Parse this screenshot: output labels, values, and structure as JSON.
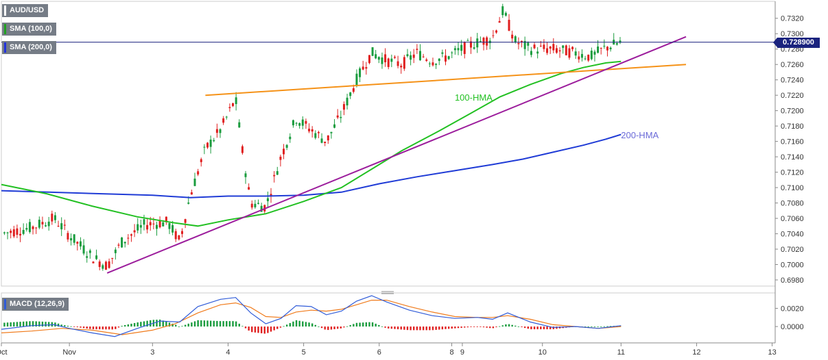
{
  "symbol": "AUD/USD",
  "legend": [
    {
      "label": "SMA (100,0)",
      "color": "#1fa01f"
    },
    {
      "label": "SMA (200,0)",
      "color": "#2233dd"
    }
  ],
  "macd_label": "MACD (12,26,9)",
  "current_price_label": "0.728900",
  "colors": {
    "up": "#1a9c3e",
    "down": "#e01f1f",
    "hma100": "#22c022",
    "hma200": "#1f3bd6",
    "support": "#9c1d9c",
    "resistance": "#f59218",
    "price_line": "#1a237e",
    "macd": "#2f5bd8",
    "signal": "#f07a1a"
  },
  "chart_data": {
    "type": "candlestick",
    "xlabel": "",
    "ylabel": "",
    "x_ticks": [
      "Oct",
      "Nov",
      "3",
      "4",
      "5",
      "6",
      "8",
      "9",
      "10",
      "11",
      "12",
      "13"
    ],
    "x_tick_pos": [
      0,
      4.5,
      10.0,
      15.0,
      20.0,
      25.0,
      29.8,
      30.5,
      35.8,
      41.0,
      46.0,
      51.0
    ],
    "x_range": [
      0,
      51.2
    ],
    "y_ticks": [
      "0.6980",
      "0.7000",
      "0.7020",
      "0.7040",
      "0.7060",
      "0.7080",
      "0.7100",
      "0.7120",
      "0.7140",
      "0.7160",
      "0.7180",
      "0.7200",
      "0.7220",
      "0.7240",
      "0.7260",
      "0.7280",
      "0.7300",
      "0.7320"
    ],
    "ylim": [
      0.6972,
      0.7342
    ],
    "current_price": 0.7289,
    "annotations": [
      {
        "text": "100-HMA",
        "x": 30.0,
        "y": 0.7213,
        "color": "#22c022"
      },
      {
        "text": "200-HMA",
        "x": 41.0,
        "y": 0.7164,
        "color": "#6a6ad8"
      }
    ],
    "hma100": [
      [
        0,
        0.7104
      ],
      [
        3,
        0.7092
      ],
      [
        6,
        0.7076
      ],
      [
        9,
        0.7062
      ],
      [
        11.5,
        0.7054
      ],
      [
        13,
        0.705
      ],
      [
        15,
        0.7058
      ],
      [
        17.5,
        0.7066
      ],
      [
        20,
        0.7082
      ],
      [
        22.5,
        0.71
      ],
      [
        24.5,
        0.7124
      ],
      [
        26.5,
        0.7148
      ],
      [
        29,
        0.7174
      ],
      [
        31,
        0.7196
      ],
      [
        33,
        0.7218
      ],
      [
        35,
        0.7234
      ],
      [
        37,
        0.7248
      ],
      [
        38.5,
        0.7256
      ],
      [
        40,
        0.7262
      ],
      [
        41,
        0.7264
      ]
    ],
    "hma200": [
      [
        0,
        0.7096
      ],
      [
        5,
        0.7093
      ],
      [
        10,
        0.709
      ],
      [
        12.5,
        0.7087
      ],
      [
        15,
        0.7089
      ],
      [
        17.5,
        0.7089
      ],
      [
        20,
        0.709
      ],
      [
        22.5,
        0.7094
      ],
      [
        25,
        0.7105
      ],
      [
        27.5,
        0.7114
      ],
      [
        30,
        0.7122
      ],
      [
        32.5,
        0.713
      ],
      [
        34.5,
        0.7137
      ],
      [
        36.5,
        0.7146
      ],
      [
        38.5,
        0.7155
      ],
      [
        40,
        0.7163
      ],
      [
        41,
        0.7169
      ]
    ],
    "support_line": [
      [
        7,
        0.6989
      ],
      [
        45.3,
        0.7296
      ]
    ],
    "resistance_line": [
      [
        13.5,
        0.722
      ],
      [
        45.3,
        0.726
      ]
    ],
    "macd_yticks": [
      "0.0020",
      "0.0000"
    ],
    "macd_ylim": [
      -0.0015,
      0.0034
    ],
    "macd_line": [
      [
        0,
        -0.0003
      ],
      [
        2,
        0.0001
      ],
      [
        3.5,
        0.0002
      ],
      [
        4.5,
        -0.0002
      ],
      [
        6,
        -0.0007
      ],
      [
        7.5,
        -0.0011
      ],
      [
        9,
        -0.0002
      ],
      [
        10.5,
        0.0006
      ],
      [
        11.8,
        0.0005
      ],
      [
        13,
        0.0022
      ],
      [
        14.5,
        0.003
      ],
      [
        15.5,
        0.0032
      ],
      [
        16.5,
        0.0015
      ],
      [
        17.5,
        0.0003
      ],
      [
        18.5,
        0.0009
      ],
      [
        19.5,
        0.0023
      ],
      [
        20.5,
        0.0022
      ],
      [
        21.5,
        0.0013
      ],
      [
        22.5,
        0.0017
      ],
      [
        23.5,
        0.0028
      ],
      [
        24.5,
        0.0034
      ],
      [
        25.5,
        0.0027
      ],
      [
        27,
        0.0018
      ],
      [
        28.5,
        0.0012
      ],
      [
        30,
        0.0009
      ],
      [
        31.5,
        0.001
      ],
      [
        32.5,
        0.0008
      ],
      [
        33.5,
        0.0015
      ],
      [
        35,
        0.0005
      ],
      [
        36.5,
        -0.0001
      ],
      [
        38,
        0.0
      ],
      [
        39.5,
        -0.0002
      ],
      [
        41,
        0.0001
      ]
    ],
    "signal_line": [
      [
        0,
        -0.0007
      ],
      [
        2,
        -0.0005
      ],
      [
        4,
        -0.0002
      ],
      [
        6,
        -0.0004
      ],
      [
        8,
        -0.0009
      ],
      [
        10,
        -0.0004
      ],
      [
        11.5,
        0.0003
      ],
      [
        13,
        0.0015
      ],
      [
        14.5,
        0.0024
      ],
      [
        15.5,
        0.0026
      ],
      [
        16.5,
        0.0021
      ],
      [
        17.5,
        0.0011
      ],
      [
        18.5,
        0.001
      ],
      [
        19.5,
        0.0016
      ],
      [
        20.5,
        0.0018
      ],
      [
        21.5,
        0.0017
      ],
      [
        22.5,
        0.0019
      ],
      [
        23.5,
        0.0024
      ],
      [
        24.5,
        0.0029
      ],
      [
        25.5,
        0.0029
      ],
      [
        27,
        0.0022
      ],
      [
        28.5,
        0.0016
      ],
      [
        30,
        0.0011
      ],
      [
        31.5,
        0.001
      ],
      [
        32.5,
        0.001
      ],
      [
        33.5,
        0.0012
      ],
      [
        35,
        0.0008
      ],
      [
        36.5,
        0.0002
      ],
      [
        38,
        0.0
      ],
      [
        39.5,
        -0.0002
      ],
      [
        41,
        0.0
      ]
    ]
  }
}
